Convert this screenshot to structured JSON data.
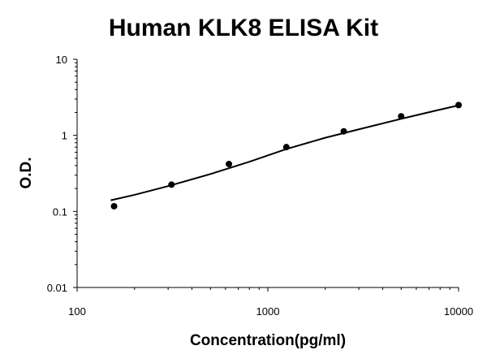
{
  "chart_data": {
    "type": "scatter",
    "title": "Human KLK8 ELISA Kit",
    "xlabel": "Concentration(pg/ml)",
    "ylabel": "O.D.",
    "xscale": "log",
    "yscale": "log",
    "xlim": [
      100,
      10000
    ],
    "ylim": [
      0.01,
      10
    ],
    "x_ticks": [
      100,
      1000,
      10000
    ],
    "x_tick_labels": [
      "100",
      "1000",
      "10000"
    ],
    "y_ticks": [
      0.01,
      0.1,
      1,
      10
    ],
    "y_tick_labels": [
      "0.01",
      "0.1",
      "1",
      "10"
    ],
    "grid": false,
    "legend": "none",
    "series": [
      {
        "points": [
          {
            "x": 156.25,
            "y": 0.117
          },
          {
            "x": 312.5,
            "y": 0.225
          },
          {
            "x": 625,
            "y": 0.42
          },
          {
            "x": 1250,
            "y": 0.7
          },
          {
            "x": 2500,
            "y": 1.13
          },
          {
            "x": 5000,
            "y": 1.78
          },
          {
            "x": 10000,
            "y": 2.5
          }
        ],
        "fit_curve": [
          {
            "x": 150,
            "y": 0.14
          },
          {
            "x": 200,
            "y": 0.165
          },
          {
            "x": 300,
            "y": 0.215
          },
          {
            "x": 500,
            "y": 0.31
          },
          {
            "x": 800,
            "y": 0.45
          },
          {
            "x": 1250,
            "y": 0.66
          },
          {
            "x": 2000,
            "y": 0.93
          },
          {
            "x": 3000,
            "y": 1.2
          },
          {
            "x": 5000,
            "y": 1.65
          },
          {
            "x": 7500,
            "y": 2.1
          },
          {
            "x": 10000,
            "y": 2.48
          }
        ]
      }
    ],
    "colors": {
      "marker": "#000000",
      "line": "#000000",
      "axis": "#000000"
    }
  }
}
